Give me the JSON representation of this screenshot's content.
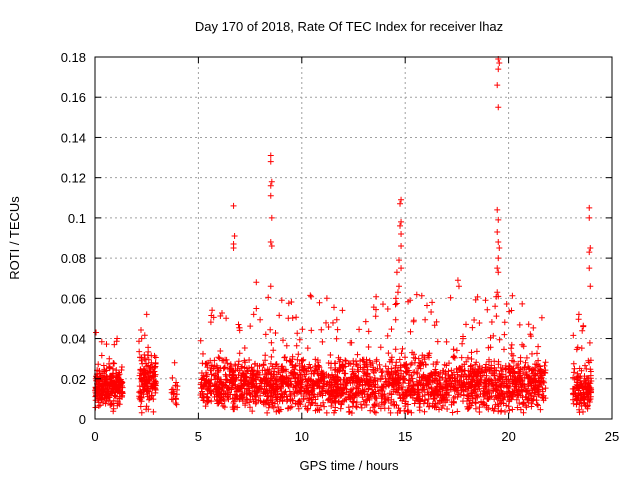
{
  "chart_data": {
    "type": "scatter",
    "title": "Day 170 of 2018, Rate Of TEC Index for receiver lhaz",
    "xlabel": "GPS time / hours",
    "ylabel": "ROTI / TECUs",
    "xlim": [
      0,
      25
    ],
    "ylim": [
      0,
      0.18
    ],
    "grid": true,
    "marker": "+",
    "marker_color": "#ff0000",
    "x_ticks": [
      0,
      5,
      10,
      15,
      20,
      25
    ],
    "x_tick_labels": [
      "0",
      "5",
      "10",
      "15",
      "20",
      "25"
    ],
    "y_ticks": [
      0,
      0.02,
      0.04,
      0.06,
      0.08,
      0.1,
      0.12,
      0.14,
      0.16,
      0.18
    ],
    "y_tick_labels": [
      "0",
      "0.02",
      "0.04",
      "0.06",
      "0.08",
      "0.1",
      "0.12",
      "0.14",
      "0.16",
      "0.18"
    ],
    "segments": [
      {
        "x_start": 0.0,
        "x_end": 1.35,
        "density": 260,
        "base": 0.016,
        "spread": 0.012,
        "max": 0.045
      },
      {
        "x_start": 2.1,
        "x_end": 2.95,
        "density": 150,
        "base": 0.018,
        "spread": 0.016,
        "max": 0.053
      },
      {
        "x_start": 3.7,
        "x_end": 4.0,
        "density": 20,
        "base": 0.012,
        "spread": 0.006,
        "max": 0.028
      },
      {
        "x_start": 5.1,
        "x_end": 21.8,
        "density": 2600,
        "base": 0.017,
        "spread": 0.016,
        "max": 0.062
      },
      {
        "x_start": 23.1,
        "x_end": 24.0,
        "density": 160,
        "base": 0.014,
        "spread": 0.012,
        "max": 0.05
      }
    ],
    "peaks": [
      {
        "x": 6.7,
        "y": 0.106
      },
      {
        "x": 6.75,
        "y": 0.091
      },
      {
        "x": 6.7,
        "y": 0.087
      },
      {
        "x": 6.7,
        "y": 0.085
      },
      {
        "x": 8.5,
        "y": 0.131
      },
      {
        "x": 8.5,
        "y": 0.128
      },
      {
        "x": 8.55,
        "y": 0.118
      },
      {
        "x": 8.5,
        "y": 0.116
      },
      {
        "x": 8.5,
        "y": 0.111
      },
      {
        "x": 8.55,
        "y": 0.1
      },
      {
        "x": 8.5,
        "y": 0.088
      },
      {
        "x": 8.55,
        "y": 0.086
      },
      {
        "x": 8.5,
        "y": 0.066
      },
      {
        "x": 7.8,
        "y": 0.068
      },
      {
        "x": 14.8,
        "y": 0.109
      },
      {
        "x": 14.75,
        "y": 0.107
      },
      {
        "x": 14.8,
        "y": 0.098
      },
      {
        "x": 14.75,
        "y": 0.096
      },
      {
        "x": 14.8,
        "y": 0.092
      },
      {
        "x": 14.8,
        "y": 0.086
      },
      {
        "x": 14.7,
        "y": 0.079
      },
      {
        "x": 14.8,
        "y": 0.075
      },
      {
        "x": 14.6,
        "y": 0.073
      },
      {
        "x": 14.7,
        "y": 0.066
      },
      {
        "x": 14.65,
        "y": 0.063
      },
      {
        "x": 14.55,
        "y": 0.06
      },
      {
        "x": 19.5,
        "y": 0.179
      },
      {
        "x": 19.55,
        "y": 0.177
      },
      {
        "x": 19.5,
        "y": 0.174
      },
      {
        "x": 19.45,
        "y": 0.166
      },
      {
        "x": 19.5,
        "y": 0.155
      },
      {
        "x": 19.45,
        "y": 0.104
      },
      {
        "x": 19.5,
        "y": 0.099
      },
      {
        "x": 19.45,
        "y": 0.093
      },
      {
        "x": 19.5,
        "y": 0.088
      },
      {
        "x": 19.55,
        "y": 0.085
      },
      {
        "x": 19.5,
        "y": 0.08
      },
      {
        "x": 19.45,
        "y": 0.075
      },
      {
        "x": 19.5,
        "y": 0.073
      },
      {
        "x": 19.45,
        "y": 0.063
      },
      {
        "x": 19.5,
        "y": 0.061
      },
      {
        "x": 17.55,
        "y": 0.069
      },
      {
        "x": 17.6,
        "y": 0.066
      },
      {
        "x": 16.3,
        "y": 0.058
      },
      {
        "x": 23.9,
        "y": 0.105
      },
      {
        "x": 23.9,
        "y": 0.1
      },
      {
        "x": 23.95,
        "y": 0.085
      },
      {
        "x": 23.9,
        "y": 0.083
      },
      {
        "x": 23.9,
        "y": 0.075
      },
      {
        "x": 23.95,
        "y": 0.066
      },
      {
        "x": 23.4,
        "y": 0.052
      },
      {
        "x": 0.05,
        "y": 0.043
      },
      {
        "x": 2.5,
        "y": 0.052
      },
      {
        "x": 3.85,
        "y": 0.028
      }
    ]
  }
}
